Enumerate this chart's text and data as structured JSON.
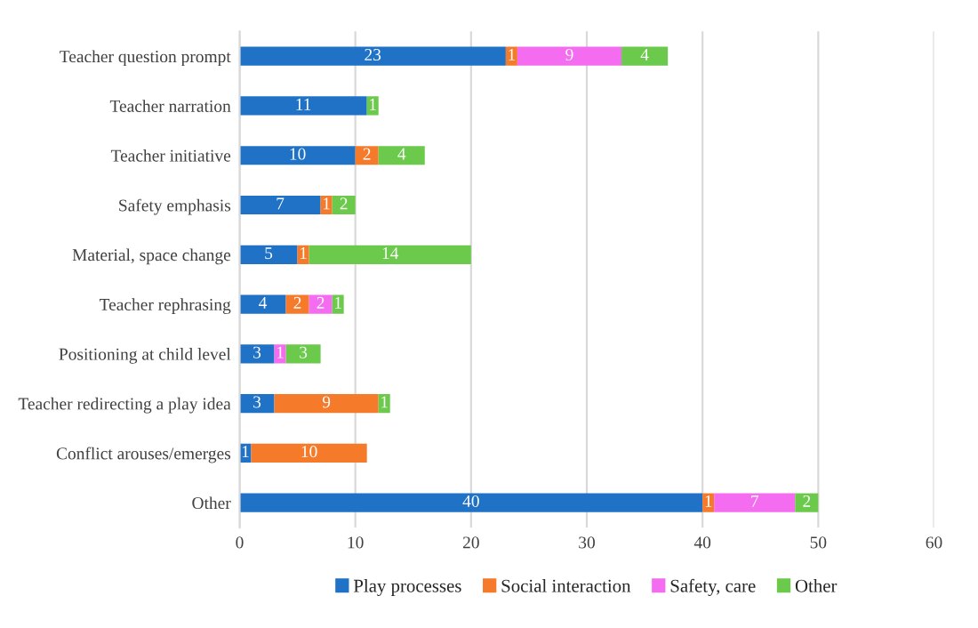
{
  "chart_data": {
    "type": "bar",
    "orientation": "horizontal",
    "stacked": true,
    "data_labels": true,
    "grid": "x",
    "legend": "bottom",
    "categories": [
      "Teacher question prompt",
      "Teacher narration",
      "Teacher initiative",
      "Safety emphasis",
      "Material, space change",
      "Teacher rephrasing",
      "Positioning at child level",
      "Teacher redirecting a play idea",
      "Conflict arouses/emerges",
      "Other"
    ],
    "series": [
      {
        "name": "Play processes",
        "color": "#1f72c6",
        "values": [
          23,
          11,
          10,
          7,
          5,
          4,
          3,
          3,
          1,
          40
        ]
      },
      {
        "name": "Social interaction",
        "color": "#f57b2b",
        "values": [
          1,
          null,
          2,
          1,
          1,
          2,
          null,
          9,
          10,
          1
        ]
      },
      {
        "name": "Safety, care",
        "color": "#f46cf0",
        "values": [
          9,
          null,
          null,
          null,
          null,
          2,
          1,
          null,
          null,
          7
        ]
      },
      {
        "name": "Other",
        "color": "#6bc94b",
        "values": [
          4,
          1,
          4,
          2,
          14,
          1,
          3,
          1,
          null,
          2
        ]
      }
    ],
    "xlim": [
      0,
      60
    ],
    "xticks": [
      0,
      10,
      20,
      30,
      40,
      50,
      60
    ]
  }
}
